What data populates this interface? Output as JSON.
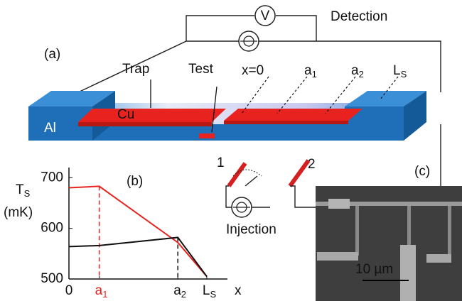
{
  "panel_a": {
    "label": "(a)",
    "voltmeter": "V",
    "detection": "Detection",
    "injection": "Injection",
    "al": "Al",
    "cu": "Cu",
    "trap": "Trap",
    "test": "Test",
    "x0": "x=0",
    "a1": {
      "base": "a",
      "sub": "1"
    },
    "a2": {
      "base": "a",
      "sub": "2"
    },
    "ls": {
      "base": "L",
      "sub": "S"
    },
    "probe1": "1",
    "probe2": "2"
  },
  "panel_b": {
    "type": "line",
    "label": "(b)",
    "y_label": {
      "base": "T",
      "sub": "S"
    },
    "y_unit": "(mK)",
    "x_label": "x",
    "x": [
      0,
      0.22,
      0.79,
      1
    ],
    "xticks": [
      {
        "value": 0,
        "label": "0"
      },
      {
        "value": 0.22,
        "label": {
          "base": "a",
          "sub": "1"
        }
      },
      {
        "value": 0.79,
        "label": {
          "base": "a",
          "sub": "2"
        }
      },
      {
        "value": 1,
        "label": {
          "base": "L",
          "sub": "S"
        }
      }
    ],
    "xlim": [
      0,
      1.15
    ],
    "ylim": [
      500,
      720
    ],
    "yticks": [
      500,
      600,
      700
    ],
    "series": [
      {
        "color": "#e8231f",
        "values": [
          680,
          683,
          572,
          505
        ]
      },
      {
        "color": "#111111",
        "values": [
          564,
          566,
          582,
          505
        ]
      }
    ]
  },
  "panel_c": {
    "label": "(c)",
    "scale": "10 µm"
  }
}
